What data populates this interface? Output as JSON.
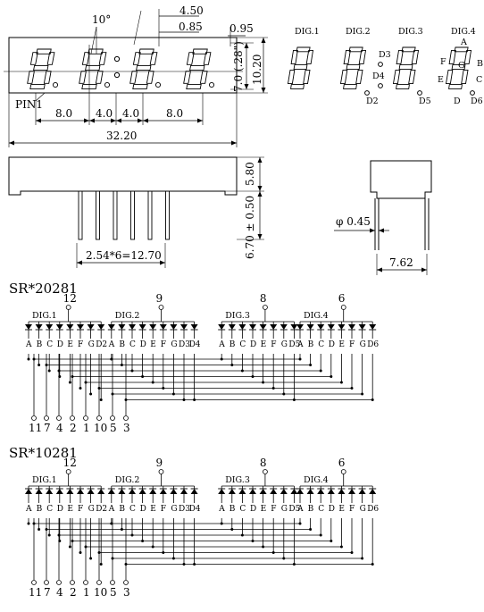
{
  "top_view": {
    "dims": {
      "angle": "10°",
      "a450": "4.50",
      "a085": "0.85",
      "a095": "0.95",
      "a70": "7.0 (.28\")",
      "h1020": "10.20",
      "w80a": "8.0",
      "w40a": "4.0",
      "w40b": "4.0",
      "w80b": "8.0",
      "w3220": "32.20"
    },
    "pin1_label": "PIN1"
  },
  "segment_legend": {
    "digits": [
      "DIG.1",
      "DIG.2",
      "DIG.3",
      "DIG.4"
    ],
    "segment_letters": [
      "A",
      "B",
      "C",
      "D",
      "E",
      "F",
      "G"
    ],
    "dp_labels": [
      "D2",
      "D3",
      "D4",
      "D5",
      "D6"
    ]
  },
  "side_view": {
    "h580": "5.80",
    "h670": "6.70 ± 0.50",
    "pitch": "2.54*6=12.70"
  },
  "end_view": {
    "diameter": "φ 0.45",
    "width": "7.62"
  },
  "circuits": [
    {
      "title": "SR*20281",
      "type": "common-anode",
      "digit_pins": [
        "12",
        "9",
        "8",
        "6"
      ],
      "digit_labels": [
        "DIG.1",
        "DIG.2",
        "DIG.3",
        "DIG.4"
      ],
      "segments": [
        [
          "A",
          "B",
          "C",
          "D",
          "E",
          "F",
          "G",
          "D2"
        ],
        [
          "A",
          "B",
          "C",
          "D",
          "E",
          "F",
          "G",
          "D3",
          "D4"
        ],
        [
          "A",
          "B",
          "C",
          "D",
          "E",
          "F",
          "G",
          "D5"
        ],
        [
          "A",
          "B",
          "C",
          "D",
          "E",
          "F",
          "G",
          "D6"
        ]
      ],
      "bottom_pins": [
        "11",
        "7",
        "4",
        "2",
        "1",
        "10",
        "5",
        "3"
      ]
    },
    {
      "title": "SR*10281",
      "type": "common-cathode",
      "digit_pins": [
        "12",
        "9",
        "8",
        "6"
      ],
      "digit_labels": [
        "DIG.1",
        "DIG.2",
        "DIG.3",
        "DIG.4"
      ],
      "segments": [
        [
          "A",
          "B",
          "C",
          "D",
          "E",
          "F",
          "G",
          "D2"
        ],
        [
          "A",
          "B",
          "C",
          "D",
          "E",
          "F",
          "G",
          "D3",
          "D4"
        ],
        [
          "A",
          "B",
          "C",
          "D",
          "E",
          "F",
          "G",
          "D5"
        ],
        [
          "A",
          "B",
          "C",
          "D",
          "E",
          "F",
          "G",
          "D6"
        ]
      ],
      "bottom_pins": [
        "11",
        "7",
        "4",
        "2",
        "1",
        "10",
        "5",
        "3"
      ]
    }
  ]
}
